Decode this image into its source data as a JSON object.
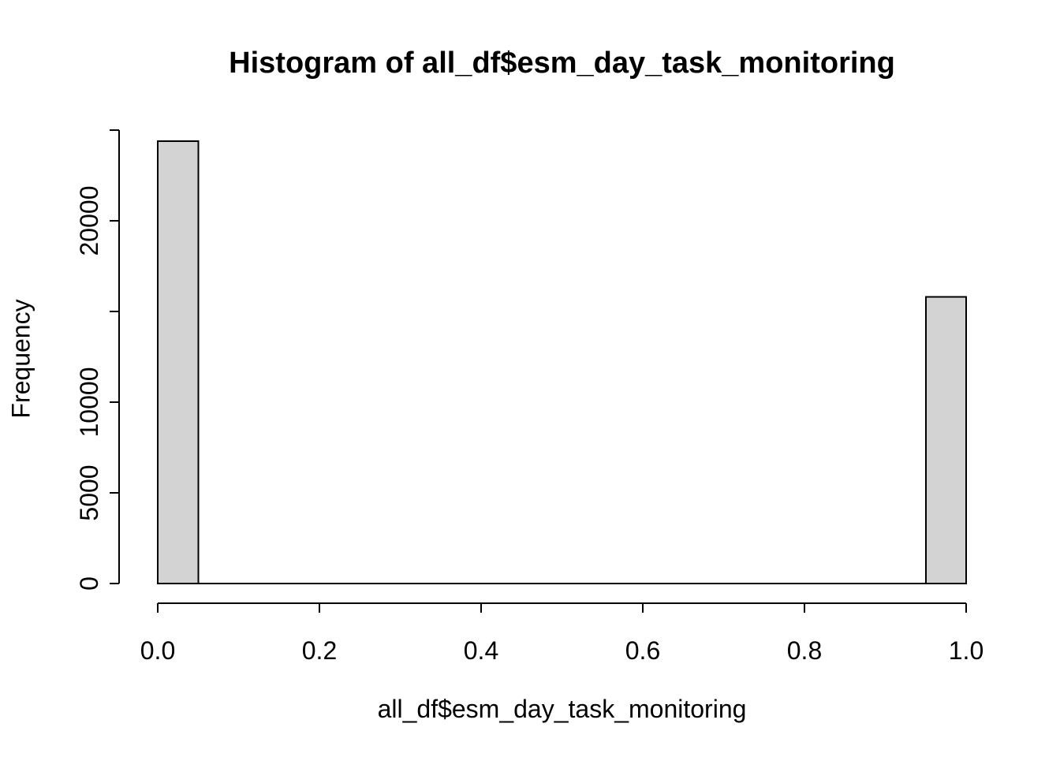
{
  "chart_data": {
    "type": "bar",
    "subtype": "histogram",
    "title": "Histogram of all_df$esm_day_task_monitoring",
    "xlabel": "all_df$esm_day_task_monitoring",
    "ylabel": "Frequency",
    "xlim": [
      0.0,
      1.0
    ],
    "ylim": [
      0,
      25000
    ],
    "grid": false,
    "bins": {
      "start": 0.0,
      "width": 0.05,
      "counts": [
        24400,
        0,
        0,
        0,
        0,
        0,
        0,
        0,
        0,
        0,
        0,
        0,
        0,
        0,
        0,
        0,
        0,
        0,
        0,
        15800
      ]
    },
    "xticks": {
      "values": [
        0.0,
        0.2,
        0.4,
        0.6,
        0.8,
        1.0
      ],
      "labels": [
        "0.0",
        "0.2",
        "0.4",
        "0.6",
        "0.8",
        "1.0"
      ]
    },
    "yticks": {
      "values": [
        0,
        5000,
        10000,
        15000,
        20000,
        25000
      ],
      "labels": [
        "0",
        "5000",
        "10000",
        "",
        "20000",
        ""
      ]
    },
    "colors": {
      "bar_fill": "#d3d3d3",
      "bar_stroke": "#000000",
      "axis": "#000000",
      "text": "#000000"
    }
  }
}
